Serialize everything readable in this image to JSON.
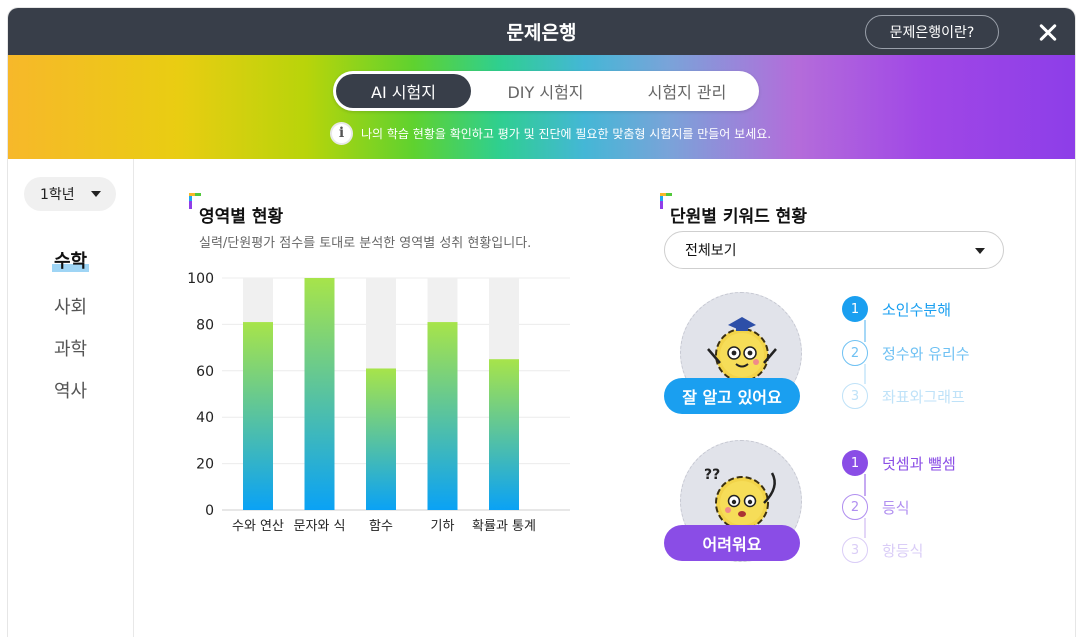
{
  "window": {
    "title": "문제은행",
    "about_label": "문제은행이란?"
  },
  "tabs": [
    {
      "label": "AI 시험지",
      "active": true
    },
    {
      "label": "DIY 시험지",
      "active": false
    },
    {
      "label": "시험지 관리",
      "active": false
    }
  ],
  "notice": {
    "icon": "info-icon",
    "text": "나의 학습 현황을 확인하고 평가 및 진단에 필요한 맞춤형 시험지를 만들어 보세요."
  },
  "sidebar": {
    "grade": "1학년",
    "subjects": [
      {
        "label": "수학",
        "active": true
      },
      {
        "label": "사회",
        "active": false
      },
      {
        "label": "과학",
        "active": false
      },
      {
        "label": "역사",
        "active": false
      }
    ]
  },
  "area_status": {
    "title": "영역별 현황",
    "description": "실력/단원평가 점수를 토대로 분석한 영역별 성취 현황입니다."
  },
  "chart_data": {
    "type": "bar",
    "categories": [
      "수와 연산",
      "문자와 식",
      "함수",
      "기하",
      "확률과 통계"
    ],
    "values": [
      81,
      100,
      61,
      81,
      65
    ],
    "ylim": [
      0,
      100
    ],
    "yticks": [
      0,
      20,
      40,
      60,
      80,
      100
    ],
    "grid": true,
    "colors": {
      "bar_top": "#a7e44a",
      "bar_bottom": "#0aa2f5",
      "track": "#f0f0f0"
    }
  },
  "keyword_status": {
    "title": "단원별 키워드 현황",
    "filter": "전체보기",
    "good": {
      "badge": "잘 알고 있어요",
      "color": "#1a9ff0",
      "items": [
        {
          "num": "1",
          "label": "소인수분해"
        },
        {
          "num": "2",
          "label": "정수와 유리수"
        },
        {
          "num": "3",
          "label": "좌표와그래프"
        }
      ]
    },
    "hard": {
      "badge": "어려워요",
      "color": "#8a4de6",
      "items": [
        {
          "num": "1",
          "label": "덧셈과 뺄셈"
        },
        {
          "num": "2",
          "label": "등식"
        },
        {
          "num": "3",
          "label": "항등식"
        }
      ]
    }
  }
}
